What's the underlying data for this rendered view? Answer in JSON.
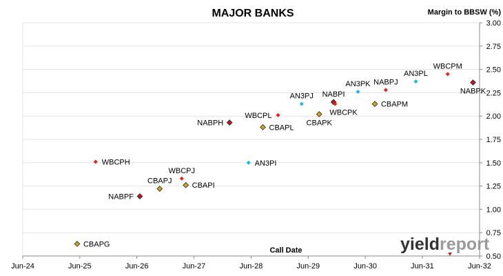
{
  "chart_data": {
    "type": "scatter",
    "title": "MAJOR BANKS",
    "ylabel": "Margin to BBSW (%)",
    "xlabel": "Call Date",
    "ylim": [
      0.5,
      3.0
    ],
    "y_ticks": [
      "0.50",
      "0.75",
      "1.00",
      "1.25",
      "1.50",
      "1.75",
      "2.00",
      "2.25",
      "2.50",
      "2.75",
      "3.00"
    ],
    "x_range": [
      "2024-06-01",
      "2032-06-01"
    ],
    "x_ticks": [
      {
        "date": "2024-06-01",
        "label": "Jun-24"
      },
      {
        "date": "2025-06-01",
        "label": "Jun-25"
      },
      {
        "date": "2026-06-01",
        "label": "Jun-26"
      },
      {
        "date": "2027-06-01",
        "label": "Jun-27"
      },
      {
        "date": "2028-06-01",
        "label": "Jun-28"
      },
      {
        "date": "2029-06-01",
        "label": "Jun-29"
      },
      {
        "date": "2030-06-01",
        "label": "Jun-30"
      },
      {
        "date": "2031-06-01",
        "label": "Jun-31"
      },
      {
        "date": "2032-06-01",
        "label": "Jun-32"
      }
    ],
    "grid": "horizontal",
    "legend": "none",
    "points": [
      {
        "label": "CBAPG",
        "date": "2025-05-15",
        "y": 0.63,
        "color": "#d9a21b",
        "marker": "diamond-outline",
        "label_side": "right"
      },
      {
        "label": "WBCPH",
        "date": "2025-09-10",
        "y": 1.51,
        "color": "#ee1c1c",
        "marker": "diamond",
        "label_side": "right"
      },
      {
        "label": "NABPF",
        "date": "2026-06-20",
        "y": 1.14,
        "color": "#c0161e",
        "marker": "diamond-outline",
        "label_side": "left"
      },
      {
        "label": "CBAPJ",
        "date": "2026-10-25",
        "y": 1.22,
        "color": "#d9a21b",
        "marker": "diamond-outline",
        "label_side": "above"
      },
      {
        "label": "WBCPJ",
        "date": "2027-03-15",
        "y": 1.33,
        "color": "#ee1c1c",
        "marker": "diamond",
        "label_side": "above"
      },
      {
        "label": "CBAPI",
        "date": "2027-04-10",
        "y": 1.26,
        "color": "#d9a21b",
        "marker": "diamond-outline",
        "label_side": "right"
      },
      {
        "label": "NABPH",
        "date": "2028-01-15",
        "y": 1.93,
        "color": "#c0161e",
        "marker": "diamond-outline",
        "label_side": "left"
      },
      {
        "label": "AN3PI",
        "date": "2028-05-15",
        "y": 1.5,
        "color": "#19b5e4",
        "marker": "diamond",
        "label_side": "right"
      },
      {
        "label": "CBAPL",
        "date": "2028-08-15",
        "y": 1.88,
        "color": "#d9a21b",
        "marker": "diamond-outline",
        "label_side": "right"
      },
      {
        "label": "WBCPL",
        "date": "2028-11-20",
        "y": 2.01,
        "color": "#ee1c1c",
        "marker": "diamond",
        "label_side": "left"
      },
      {
        "label": "AN3PJ",
        "date": "2029-04-20",
        "y": 2.13,
        "color": "#19b5e4",
        "marker": "diamond",
        "label_side": "above"
      },
      {
        "label": "CBAPK",
        "date": "2029-08-10",
        "y": 2.02,
        "color": "#d9a21b",
        "marker": "diamond-outline",
        "label_side": "below"
      },
      {
        "label": "NABPI",
        "date": "2029-11-10",
        "y": 2.15,
        "color": "#c0161e",
        "marker": "diamond-outline",
        "label_side": "above"
      },
      {
        "label": "WBCPK",
        "date": "2029-11-20",
        "y": 2.13,
        "color": "#ee1c1c",
        "marker": "diamond",
        "label_side": "below-right"
      },
      {
        "label": "AN3PK",
        "date": "2030-04-15",
        "y": 2.26,
        "color": "#19b5e4",
        "marker": "diamond",
        "label_side": "above"
      },
      {
        "label": "NABPJ",
        "date": "2030-10-10",
        "y": 2.28,
        "color": "#ee1c1c",
        "marker": "diamond",
        "label_side": "above"
      },
      {
        "label": "CBAPM",
        "date": "2030-08-01",
        "y": 2.13,
        "color": "#d9a21b",
        "marker": "diamond-outline",
        "label_side": "right"
      },
      {
        "label": "AN3PL",
        "date": "2031-04-20",
        "y": 2.37,
        "color": "#19b5e4",
        "marker": "diamond",
        "label_side": "above"
      },
      {
        "label": "WBCPM",
        "date": "2031-11-10",
        "y": 2.45,
        "color": "#ee1c1c",
        "marker": "diamond",
        "label_side": "above"
      },
      {
        "label": "NABPK",
        "date": "2032-04-20",
        "y": 2.36,
        "color": "#c0161e",
        "marker": "diamond-outline",
        "label_side": "below"
      }
    ]
  },
  "logo": {
    "text": "yieldreport",
    "part1": "yield",
    "part2": "report",
    "part1_color": "#333333",
    "part2_color": "#9a9a9a",
    "accent_color": "#d92323"
  }
}
